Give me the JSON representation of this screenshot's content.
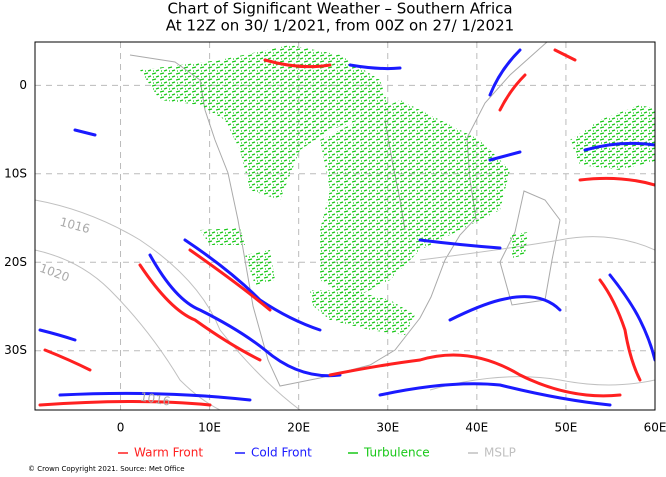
{
  "header": {
    "title": "Chart of Significant Weather – Southern Africa",
    "subtitle": "At 12Z on 30/ 1/2021, from 00Z on 27/ 1/2021"
  },
  "map": {
    "lonlim": [
      -9.6,
      60
    ],
    "latlim": [
      -36.7,
      4.9
    ],
    "lon_ticks": [
      {
        "value": 0,
        "label": "0"
      },
      {
        "value": 10,
        "label": "10E"
      },
      {
        "value": 20,
        "label": "20E"
      },
      {
        "value": 30,
        "label": "30E"
      },
      {
        "value": 40,
        "label": "40E"
      },
      {
        "value": 50,
        "label": "50E"
      },
      {
        "value": 60,
        "label": "60E"
      }
    ],
    "lat_ticks": [
      {
        "value": 0,
        "label": "0"
      },
      {
        "value": -10,
        "label": "10S"
      },
      {
        "value": -20,
        "label": "20S"
      },
      {
        "value": -30,
        "label": "30S"
      }
    ],
    "grid": true,
    "isobar_labels": [
      "1016",
      "1020",
      "1016"
    ]
  },
  "legend": [
    {
      "name": "Warm Front",
      "color": "#ff2020"
    },
    {
      "name": "Cold Front",
      "color": "#1a1aff"
    },
    {
      "name": "Turbulence",
      "color": "#18c818"
    },
    {
      "name": "MSLP",
      "color": "#c0c0c0"
    }
  ],
  "footer": "© Crown Copyright 2021. Source: Met Office"
}
